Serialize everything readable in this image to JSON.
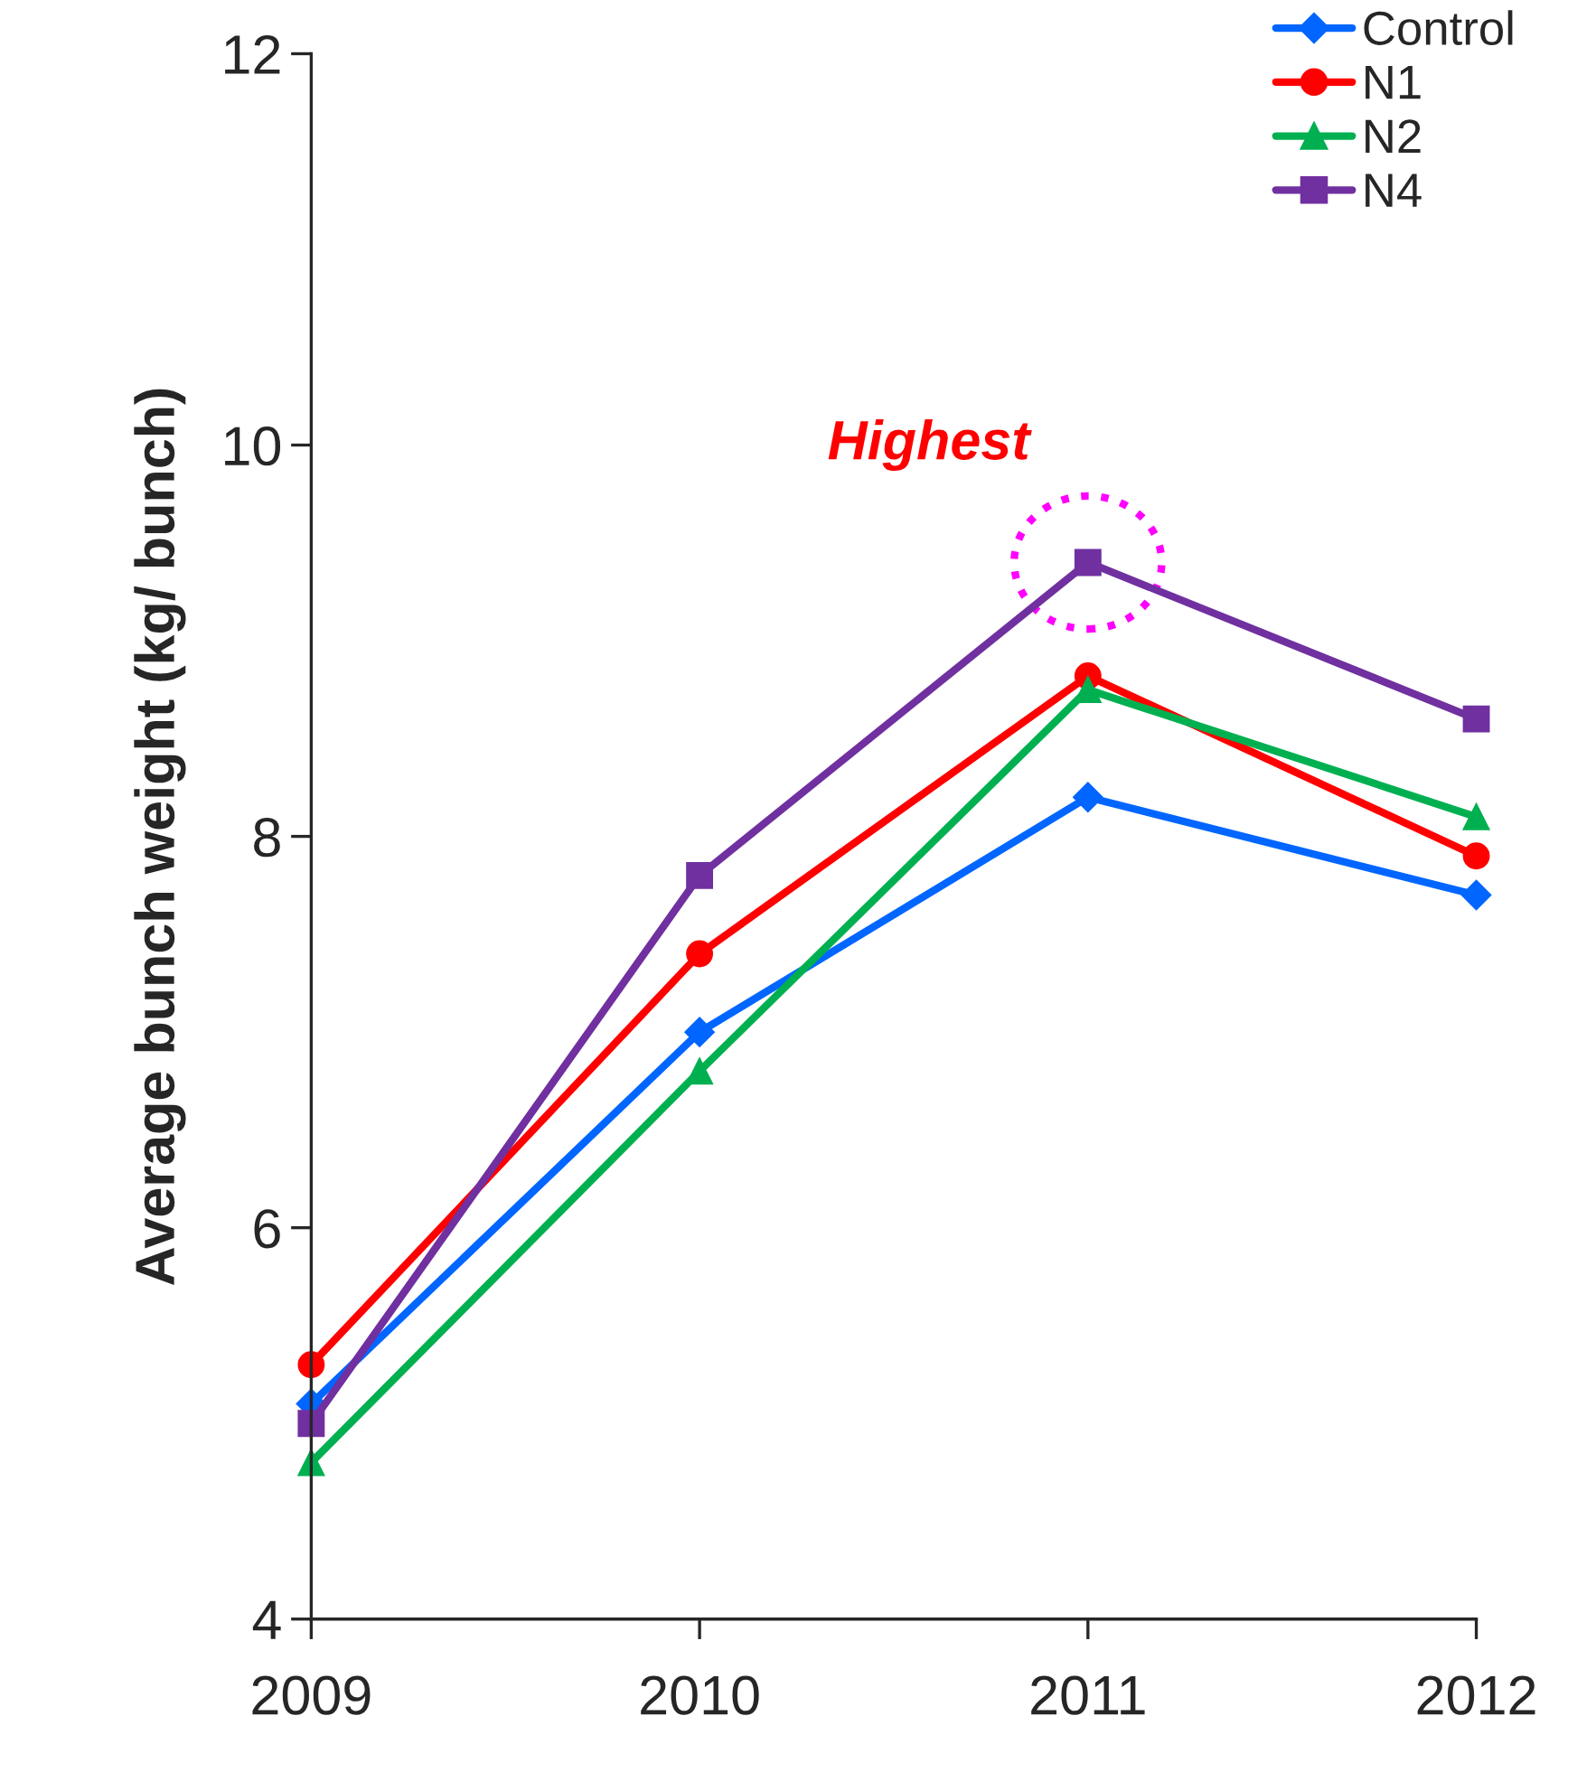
{
  "chart_data": {
    "type": "line",
    "ylabel": "Average bunch weight (kg/ bunch)",
    "categories": [
      "2009",
      "2010",
      "2011",
      "2012"
    ],
    "series": [
      {
        "name": "Control",
        "color": "#0066ff",
        "marker": "diamond",
        "values": [
          5.1,
          7.0,
          8.2,
          7.7
        ]
      },
      {
        "name": "N1",
        "color": "#ff0000",
        "marker": "circle",
        "values": [
          5.3,
          7.4,
          8.82,
          7.9
        ]
      },
      {
        "name": "N2",
        "color": "#00b050",
        "marker": "triangle",
        "values": [
          4.8,
          6.8,
          8.75,
          8.1
        ]
      },
      {
        "name": "N4",
        "color": "#7030a0",
        "marker": "square",
        "values": [
          5.0,
          7.8,
          9.4,
          8.6
        ]
      }
    ],
    "ylim": [
      4,
      12
    ],
    "yticks": [
      4,
      6,
      8,
      10,
      12
    ],
    "grid": false,
    "legend": "top right",
    "line_style": "solid",
    "annotations": [
      "Highest"
    ]
  }
}
